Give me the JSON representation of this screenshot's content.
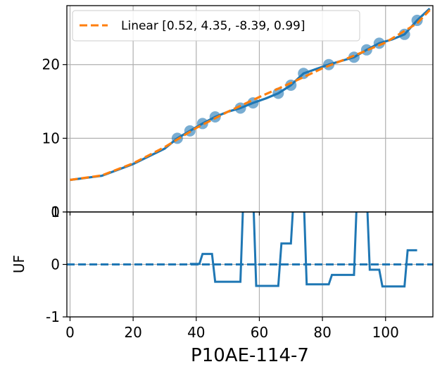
{
  "chart_data": [
    {
      "type": "scatter",
      "panel": "top",
      "xlim": [
        -1,
        115
      ],
      "ylim": [
        0,
        28
      ],
      "grid": true,
      "xticks": [
        0,
        20,
        40,
        60,
        80,
        100
      ],
      "yticks": [
        0,
        10,
        20
      ],
      "ytick_labels": [
        "0",
        "10",
        "20"
      ],
      "legend": {
        "placement": "top-left",
        "entries": [
          "Linear [0.52, 4.35, -8.39, 0.99]"
        ]
      },
      "colors": {
        "data": "#1f77b4",
        "fit": "#ff7f0e",
        "grid": "#b0b0b0"
      },
      "scatter": {
        "x": [
          34,
          38,
          42,
          46,
          54,
          58,
          66,
          70,
          74,
          82,
          90,
          94,
          98,
          106,
          110
        ],
        "y": [
          10.0,
          11.0,
          12.0,
          12.9,
          14.1,
          14.8,
          16.1,
          17.2,
          18.8,
          20.0,
          21.0,
          22.0,
          22.9,
          24.1,
          26.0
        ]
      },
      "data_line": {
        "x": [
          0,
          10,
          20,
          30,
          34,
          38,
          42,
          46,
          50,
          54,
          58,
          62,
          66,
          70,
          74,
          78,
          82,
          86,
          90,
          94,
          98,
          102,
          106,
          110,
          114
        ],
        "y": [
          4.35,
          4.9,
          6.5,
          8.6,
          10.0,
          11.0,
          12.0,
          12.9,
          13.6,
          14.1,
          14.8,
          15.4,
          16.1,
          17.2,
          18.8,
          19.4,
          20.0,
          20.5,
          21.0,
          22.0,
          22.9,
          23.4,
          24.1,
          26.0,
          27.6
        ]
      },
      "fit_line": {
        "x": [
          0,
          10,
          20,
          30,
          40,
          50,
          60,
          70,
          80,
          90,
          100,
          110,
          114
        ],
        "y": [
          4.35,
          4.95,
          6.6,
          8.8,
          11.4,
          13.6,
          15.6,
          17.5,
          19.5,
          21.2,
          23.0,
          25.6,
          27.4
        ]
      }
    },
    {
      "type": "line",
      "panel": "bottom",
      "ylabel": "UF",
      "xlabel": "P10AE-114-7",
      "xlim": [
        -1,
        115
      ],
      "ylim": [
        -1,
        1
      ],
      "grid": true,
      "xticks": [
        0,
        20,
        40,
        60,
        80,
        100
      ],
      "xtick_labels": [
        "0",
        "20",
        "40",
        "60",
        "80",
        "100"
      ],
      "yticks": [
        -1,
        0,
        1
      ],
      "ytick_labels": [
        "-1",
        "0",
        "1"
      ],
      "zero_line": 0,
      "series": [
        {
          "x": [
            38,
            41,
            42,
            45,
            46,
            54,
            55,
            58,
            59,
            66,
            67,
            70,
            71,
            74,
            75,
            82,
            83,
            90,
            91,
            94,
            95,
            98,
            99,
            106,
            107,
            110
          ],
          "y": [
            0.01,
            0.01,
            0.2,
            0.2,
            -0.33,
            -0.33,
            1.4,
            1.4,
            -0.41,
            -0.41,
            0.4,
            0.4,
            1.4,
            1.4,
            -0.38,
            -0.38,
            -0.2,
            -0.2,
            1.4,
            1.4,
            -0.1,
            -0.1,
            -0.42,
            -0.42,
            0.27,
            0.27
          ]
        }
      ]
    }
  ]
}
